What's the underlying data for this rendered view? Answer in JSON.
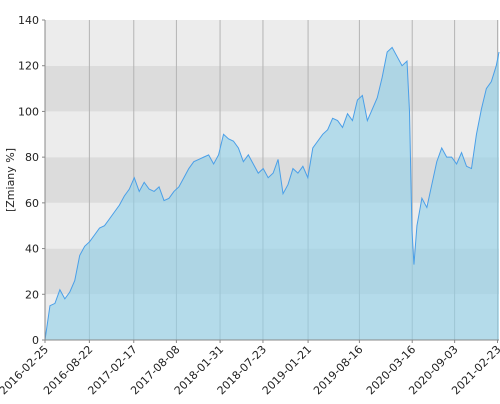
{
  "chart_data": {
    "type": "area",
    "y_label": "[Zmiany %]",
    "x": [
      "2016-02-25",
      "2016-03-16",
      "2016-04-05",
      "2016-04-25",
      "2016-05-15",
      "2016-06-04",
      "2016-06-24",
      "2016-07-14",
      "2016-08-03",
      "2016-08-23",
      "2016-09-12",
      "2016-10-02",
      "2016-10-22",
      "2016-11-11",
      "2016-12-01",
      "2016-12-21",
      "2017-01-10",
      "2017-01-30",
      "2017-02-19",
      "2017-03-11",
      "2017-03-31",
      "2017-04-20",
      "2017-05-10",
      "2017-05-30",
      "2017-06-19",
      "2017-07-09",
      "2017-07-29",
      "2017-08-18",
      "2017-09-07",
      "2017-09-27",
      "2017-10-17",
      "2017-11-06",
      "2017-11-26",
      "2017-12-16",
      "2018-01-05",
      "2018-01-25",
      "2018-02-14",
      "2018-03-06",
      "2018-03-26",
      "2018-04-15",
      "2018-05-05",
      "2018-05-25",
      "2018-06-14",
      "2018-07-04",
      "2018-07-24",
      "2018-08-13",
      "2018-09-02",
      "2018-09-22",
      "2018-10-12",
      "2018-11-01",
      "2018-11-21",
      "2018-12-11",
      "2018-12-31",
      "2019-01-20",
      "2019-02-09",
      "2019-03-01",
      "2019-03-21",
      "2019-04-10",
      "2019-04-30",
      "2019-05-20",
      "2019-06-09",
      "2019-06-29",
      "2019-07-19",
      "2019-08-08",
      "2019-08-28",
      "2019-09-17",
      "2019-10-07",
      "2019-10-27",
      "2019-11-16",
      "2019-12-06",
      "2019-12-26",
      "2020-01-15",
      "2020-02-04",
      "2020-02-24",
      "2020-03-05",
      "2020-03-15",
      "2020-03-23",
      "2020-04-04",
      "2020-04-24",
      "2020-05-14",
      "2020-06-03",
      "2020-06-23",
      "2020-07-13",
      "2020-08-02",
      "2020-08-22",
      "2020-09-11",
      "2020-10-01",
      "2020-10-21",
      "2020-11-10",
      "2020-11-30",
      "2020-12-20",
      "2021-01-09",
      "2021-01-29",
      "2021-02-18",
      "2021-03-01"
    ],
    "series": [
      {
        "color": "#4a9fe8",
        "fill": "#8fd0ea",
        "values": [
          0,
          15,
          16,
          22,
          18,
          21,
          26,
          37,
          41,
          43,
          46,
          49,
          50,
          53,
          56,
          59,
          63,
          66,
          71,
          65,
          69,
          66,
          65,
          67,
          61,
          62,
          65,
          67,
          71,
          75,
          78,
          79,
          80,
          81,
          77,
          81,
          90,
          88,
          87,
          84,
          78,
          81,
          77,
          73,
          75,
          71,
          73,
          79,
          64,
          68,
          75,
          73,
          76,
          71,
          84,
          87,
          90,
          92,
          97,
          96,
          93,
          99,
          96,
          105,
          107,
          96,
          101,
          106,
          115,
          126,
          128,
          124,
          120,
          122,
          100,
          48,
          33,
          50,
          62,
          58,
          68,
          78,
          84,
          80,
          80,
          77,
          82,
          76,
          75,
          90,
          101,
          110,
          113,
          120,
          126
        ]
      }
    ],
    "xlim": [
      "2016-02-25",
      "2021-03-01"
    ],
    "xticks": [
      "2016-02-25",
      "2016-08-22",
      "2017-02-17",
      "2017-08-08",
      "2018-01-31",
      "2018-07-23",
      "2019-01-21",
      "2019-08-16",
      "2020-03-16",
      "2020-09-03",
      "2021-02-23"
    ],
    "ylim": [
      0,
      140
    ],
    "yticks": [
      0,
      20,
      40,
      60,
      80,
      100,
      120,
      140
    ],
    "grid": true
  }
}
